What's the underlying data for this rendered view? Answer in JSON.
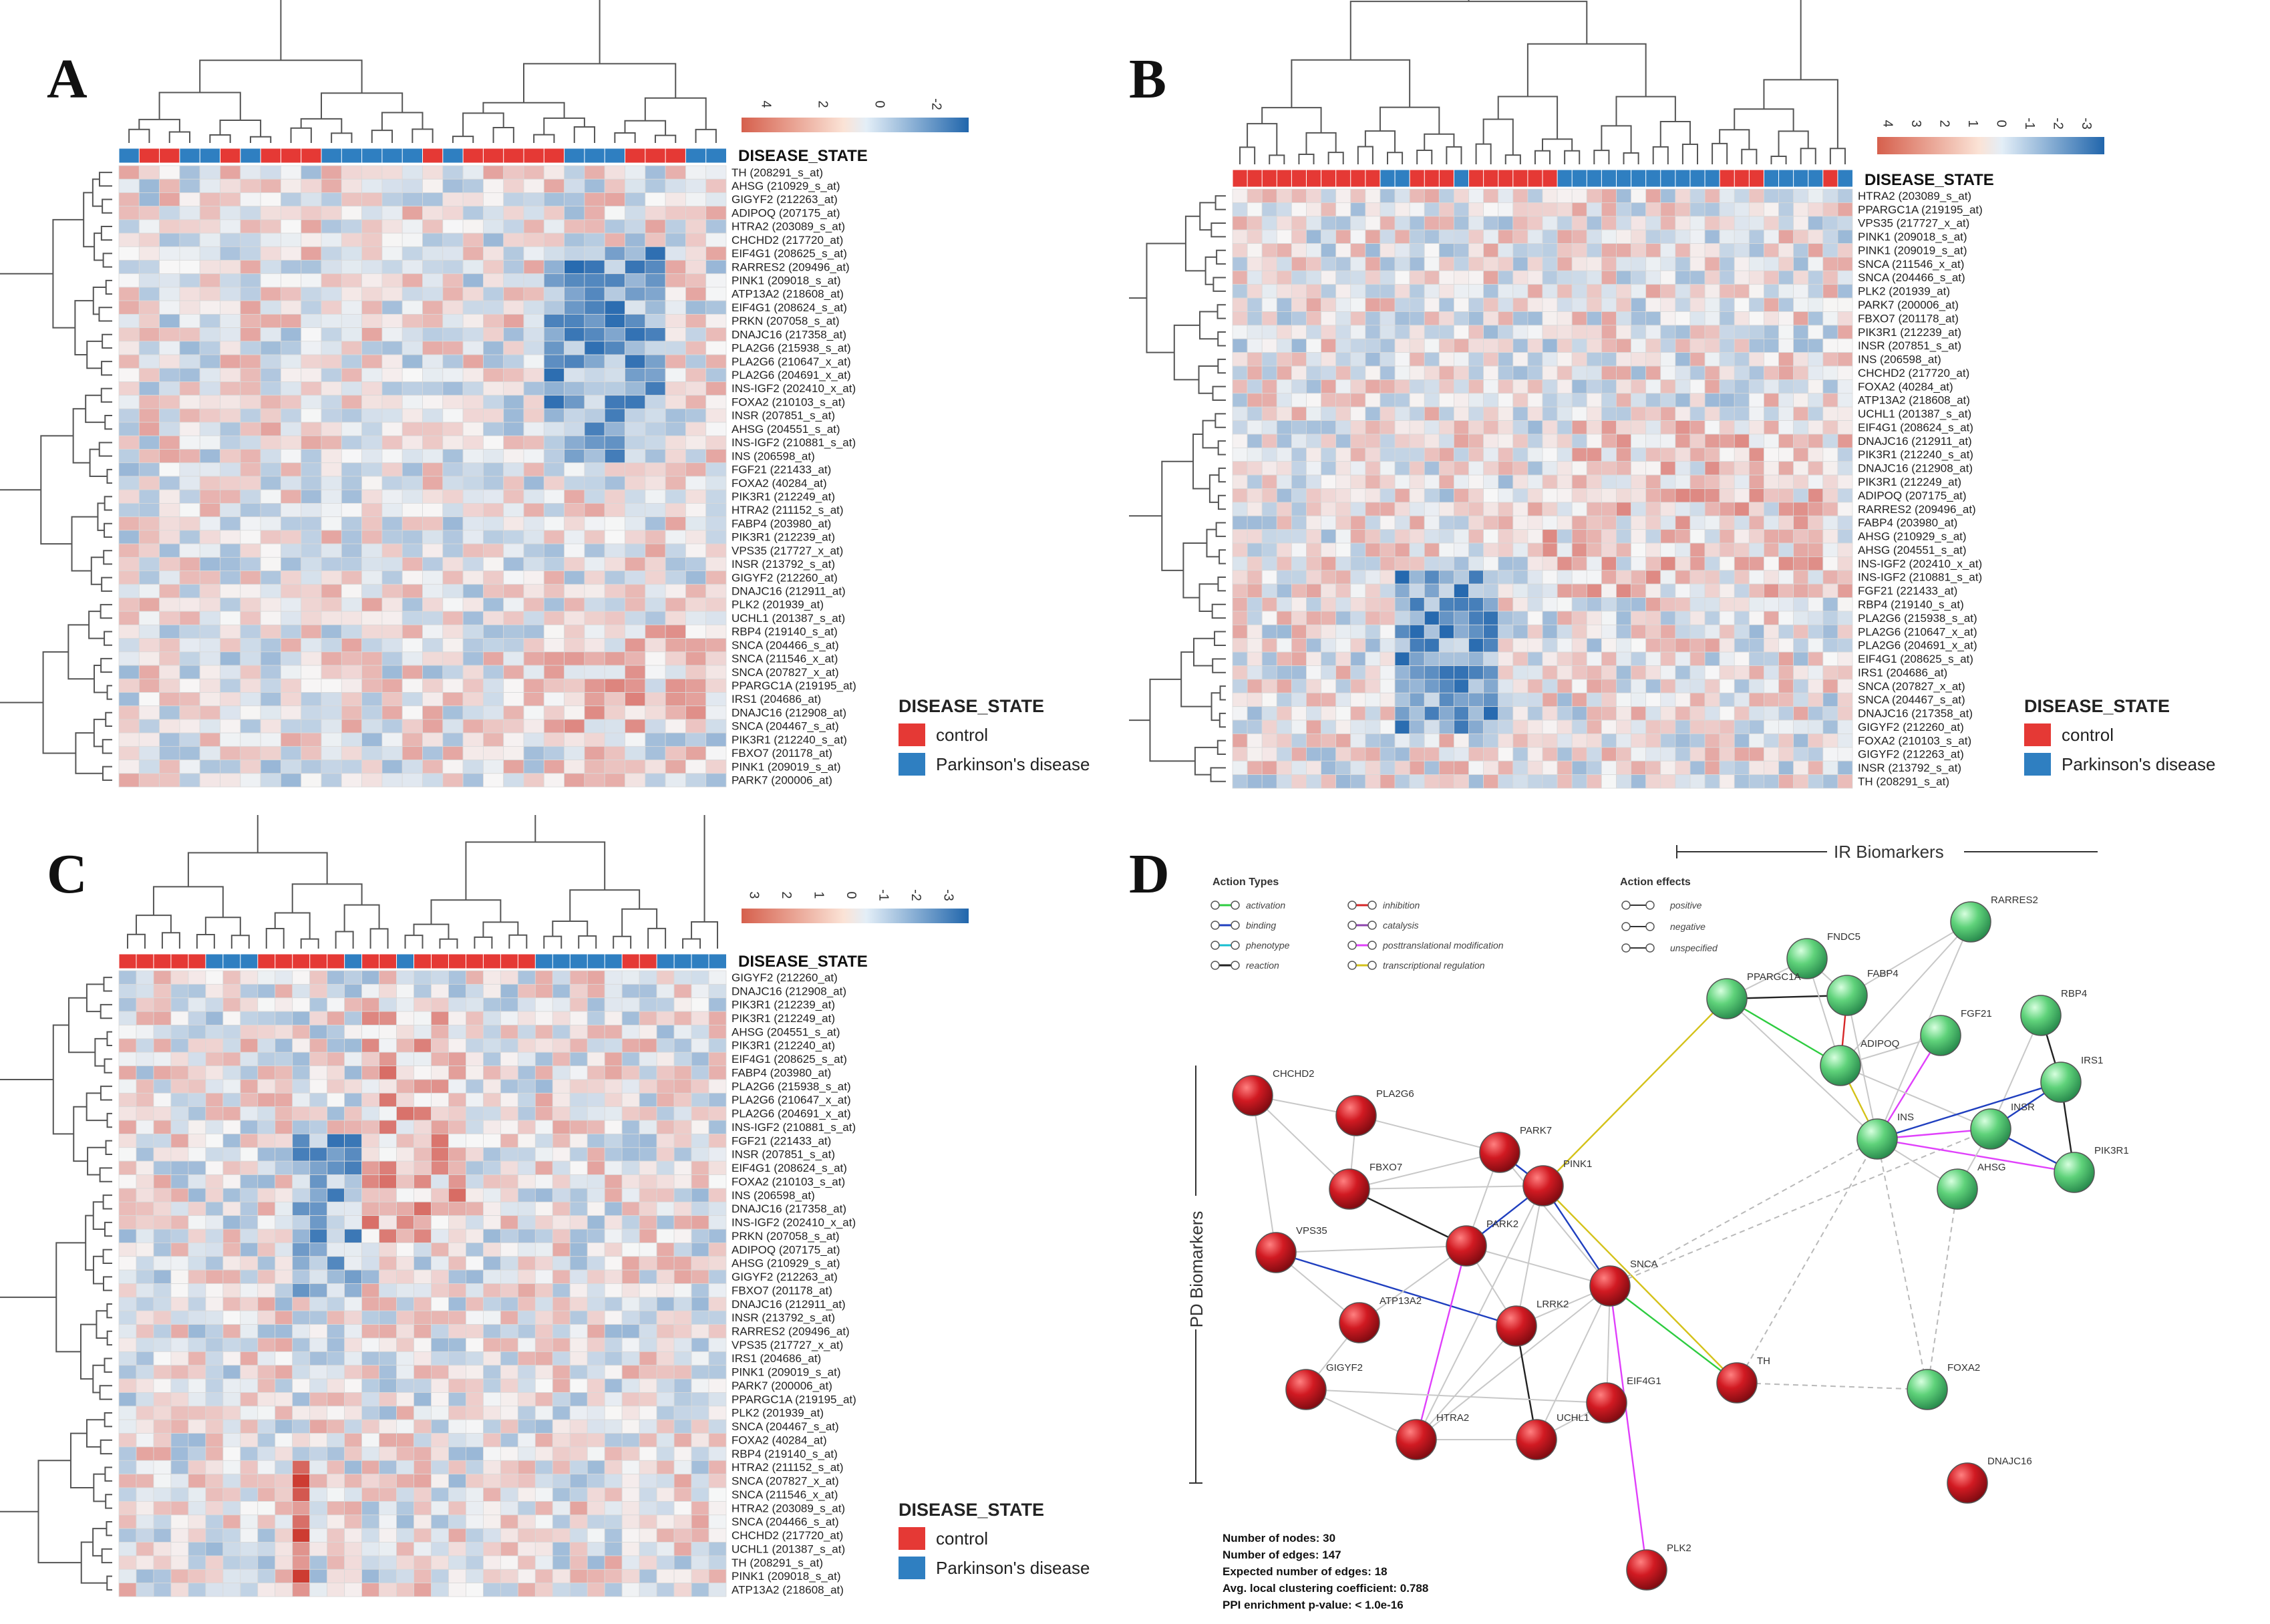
{
  "colors": {
    "control": "#e53935",
    "parkinsons": "#2f7fc1",
    "pd_node": "#c1121f",
    "ir_node": "#3fbf5f",
    "ink": "#222222"
  },
  "legend": {
    "title": "DISEASE_STATE",
    "control": "control",
    "parkinsons": "Parkinson's disease"
  },
  "heatmaps": [
    {
      "letter": "A",
      "annotation_label": "DISEASE_STATE",
      "scale_ticks": [
        "4",
        "2",
        "0",
        "-2"
      ],
      "disease_state": [
        "P",
        "C",
        "C",
        "P",
        "P",
        "C",
        "P",
        "C",
        "C",
        "C",
        "P",
        "P",
        "P",
        "P",
        "P",
        "C",
        "P",
        "C",
        "C",
        "C",
        "C",
        "C",
        "P",
        "P",
        "P",
        "C",
        "C",
        "C",
        "P",
        "P"
      ],
      "genes": [
        "TH (208291_s_at)",
        "AHSG (210929_s_at)",
        "GIGYF2 (212263_at)",
        "ADIPOQ (207175_at)",
        "HTRA2 (203089_s_at)",
        "CHCHD2 (217720_at)",
        "EIF4G1 (208625_s_at)",
        "RARRES2 (209496_at)",
        "PINK1 (209018_s_at)",
        "ATP13A2 (218608_at)",
        "EIF4G1 (208624_s_at)",
        "PRKN (207058_s_at)",
        "DNAJC16 (217358_at)",
        "PLA2G6 (215938_s_at)",
        "PLA2G6 (210647_x_at)",
        "PLA2G6 (204691_x_at)",
        "INS-IGF2 (202410_x_at)",
        "FOXA2 (210103_s_at)",
        "INSR (207851_s_at)",
        "AHSG (204551_s_at)",
        "INS-IGF2 (210881_s_at)",
        "INS (206598_at)",
        "FGF21 (221433_at)",
        "FOXA2 (40284_at)",
        "PIK3R1 (212249_at)",
        "HTRA2 (211152_s_at)",
        "FABP4 (203980_at)",
        "PIK3R1 (212239_at)",
        "VPS35 (217727_x_at)",
        "INSR (213792_s_at)",
        "GIGYF2 (212260_at)",
        "DNAJC16 (212911_at)",
        "PLK2 (201939_at)",
        "UCHL1 (201387_s_at)",
        "RBP4 (219140_s_at)",
        "SNCA (204466_s_at)",
        "SNCA (211546_x_at)",
        "SNCA (207827_x_at)",
        "PPARGC1A (219195_at)",
        "IRS1 (204686_at)",
        "DNAJC16 (212908_at)",
        "SNCA (204467_s_at)",
        "PIK3R1 (212240_s_at)",
        "FBXO7 (201178_at)",
        "PINK1 (209019_s_at)",
        "PARK7 (200006_at)"
      ]
    },
    {
      "letter": "B",
      "annotation_label": "DISEASE_STATE",
      "scale_ticks": [
        "4",
        "3",
        "2",
        "1",
        "0",
        "-1",
        "-2",
        "-3"
      ],
      "disease_state": [
        "C",
        "C",
        "C",
        "C",
        "C",
        "C",
        "C",
        "C",
        "C",
        "C",
        "P",
        "P",
        "C",
        "C",
        "C",
        "P",
        "C",
        "C",
        "C",
        "C",
        "C",
        "C",
        "P",
        "P",
        "P",
        "P",
        "P",
        "P",
        "P",
        "P",
        "P",
        "P",
        "P",
        "C",
        "C",
        "C",
        "P",
        "P",
        "P",
        "P",
        "C",
        "P"
      ],
      "genes": [
        "HTRA2 (203089_s_at)",
        "PPARGC1A (219195_at)",
        "VPS35 (217727_x_at)",
        "PINK1 (209018_s_at)",
        "PINK1 (209019_s_at)",
        "SNCA (211546_x_at)",
        "SNCA (204466_s_at)",
        "PLK2 (201939_at)",
        "PARK7 (200006_at)",
        "FBXO7 (201178_at)",
        "PIK3R1 (212239_at)",
        "INSR (207851_s_at)",
        "INS (206598_at)",
        "CHCHD2 (217720_at)",
        "FOXA2 (40284_at)",
        "ATP13A2 (218608_at)",
        "UCHL1 (201387_s_at)",
        "EIF4G1 (208624_s_at)",
        "DNAJC16 (212911_at)",
        "PIK3R1 (212240_s_at)",
        "DNAJC16 (212908_at)",
        "PIK3R1 (212249_at)",
        "ADIPOQ (207175_at)",
        "RARRES2 (209496_at)",
        "FABP4 (203980_at)",
        "AHSG (210929_s_at)",
        "AHSG (204551_s_at)",
        "INS-IGF2 (202410_x_at)",
        "INS-IGF2 (210881_s_at)",
        "FGF21 (221433_at)",
        "RBP4 (219140_s_at)",
        "PLA2G6 (215938_s_at)",
        "PLA2G6 (210647_x_at)",
        "PLA2G6 (204691_x_at)",
        "EIF4G1 (208625_s_at)",
        "IRS1 (204686_at)",
        "SNCA (207827_x_at)",
        "SNCA (204467_s_at)",
        "DNAJC16 (217358_at)",
        "GIGYF2 (212260_at)",
        "FOXA2 (210103_s_at)",
        "GIGYF2 (212263_at)",
        "INSR (213792_s_at)",
        "TH (208291_s_at)"
      ]
    },
    {
      "letter": "C",
      "annotation_label": "DISEASE_STATE",
      "scale_ticks": [
        "3",
        "2",
        "1",
        "0",
        "-1",
        "-2",
        "-3"
      ],
      "disease_state": [
        "C",
        "C",
        "C",
        "C",
        "C",
        "P",
        "P",
        "P",
        "C",
        "C",
        "C",
        "C",
        "C",
        "P",
        "C",
        "C",
        "P",
        "C",
        "C",
        "C",
        "C",
        "C",
        "C",
        "C",
        "P",
        "P",
        "P",
        "P",
        "P",
        "C",
        "C",
        "P",
        "P",
        "P",
        "P"
      ],
      "genes": [
        "GIGYF2 (212260_at)",
        "DNAJC16 (212908_at)",
        "PIK3R1 (212239_at)",
        "PIK3R1 (212249_at)",
        "AHSG (204551_s_at)",
        "PIK3R1 (212240_at)",
        "EIF4G1 (208625_s_at)",
        "FABP4 (203980_at)",
        "PLA2G6 (215938_s_at)",
        "PLA2G6 (210647_x_at)",
        "PLA2G6 (204691_x_at)",
        "INS-IGF2 (210881_s_at)",
        "FGF21 (221433_at)",
        "INSR (207851_s_at)",
        "EIF4G1 (208624_s_at)",
        "FOXA2 (210103_s_at)",
        "INS (206598_at)",
        "DNAJC16 (217358_at)",
        "INS-IGF2 (202410_x_at)",
        "PRKN (207058_s_at)",
        "ADIPOQ (207175_at)",
        "AHSG (210929_s_at)",
        "GIGYF2 (212263_at)",
        "FBXO7 (201178_at)",
        "DNAJC16 (212911_at)",
        "INSR (213792_s_at)",
        "RARRES2 (209496_at)",
        "VPS35 (217727_x_at)",
        "IRS1 (204686_at)",
        "PINK1 (209019_s_at)",
        "PARK7 (200006_at)",
        "PPARGC1A (219195_at)",
        "PLK2 (201939_at)",
        "SNCA (204467_s_at)",
        "FOXA2 (40284_at)",
        "RBP4 (219140_s_at)",
        "HTRA2 (211152_s_at)",
        "SNCA (207827_x_at)",
        "SNCA (211546_x_at)",
        "HTRA2 (203089_s_at)",
        "SNCA (204466_s_at)",
        "CHCHD2 (217720_at)",
        "UCHL1 (201387_s_at)",
        "TH (208291_s_at)",
        "PINK1 (209018_s_at)",
        "ATP13A2 (218608_at)"
      ]
    }
  ],
  "network": {
    "letter": "D",
    "ir_label": "IR Biomarkers",
    "pd_label": "PD Biomarkers",
    "action_types_title": "Action Types",
    "action_types": [
      {
        "label": "activation",
        "color": "#2ecc40"
      },
      {
        "label": "inhibition",
        "color": "#d62728"
      },
      {
        "label": "binding",
        "color": "#1f3fbf"
      },
      {
        "label": "catalysis",
        "color": "#8e44ad"
      },
      {
        "label": "phenotype",
        "color": "#17becf"
      },
      {
        "label": "posttranslational modification",
        "color": "#e040fb"
      },
      {
        "label": "reaction",
        "color": "#222222"
      },
      {
        "label": "transcriptional regulation",
        "color": "#d4c21a"
      }
    ],
    "action_effects_title": "Action effects",
    "action_effects": [
      "positive",
      "negative",
      "unspecified"
    ],
    "stats": [
      "Number of nodes: 30",
      "Number of edges: 147",
      "Expected number of edges: 18",
      "Avg. local clustering coefficient: 0.788",
      "PPI enrichment p-value: < 1.0e-16"
    ],
    "nodes": [
      {
        "id": "CHCHD2",
        "label": "CHCHD2",
        "group": "pd"
      },
      {
        "id": "PLA2G6",
        "label": "PLA2G6",
        "group": "pd"
      },
      {
        "id": "PARK7",
        "label": "PARK7",
        "group": "pd"
      },
      {
        "id": "FBXO7",
        "label": "FBXO7",
        "group": "pd"
      },
      {
        "id": "PINK1",
        "label": "PINK1",
        "group": "pd"
      },
      {
        "id": "VPS35",
        "label": "VPS35",
        "group": "pd"
      },
      {
        "id": "PARK2",
        "label": "PARK2",
        "group": "pd"
      },
      {
        "id": "SNCA",
        "label": "SNCA",
        "group": "pd"
      },
      {
        "id": "ATP13A2",
        "label": "ATP13A2",
        "group": "pd"
      },
      {
        "id": "LRRK2",
        "label": "LRRK2",
        "group": "pd"
      },
      {
        "id": "GIGYF2",
        "label": "GIGYF2",
        "group": "pd"
      },
      {
        "id": "EIF4G1",
        "label": "EIF4G1",
        "group": "pd"
      },
      {
        "id": "TH",
        "label": "TH",
        "group": "pd"
      },
      {
        "id": "HTRA2",
        "label": "HTRA2",
        "group": "pd"
      },
      {
        "id": "UCHL1",
        "label": "UCHL1",
        "group": "pd"
      },
      {
        "id": "PLK2",
        "label": "PLK2",
        "group": "pd"
      },
      {
        "id": "DNAJC16",
        "label": "DNAJC16",
        "group": "pd"
      },
      {
        "id": "RARRES2",
        "label": "RARRES2",
        "group": "ir"
      },
      {
        "id": "FNDC5",
        "label": "FNDC5",
        "group": "ir"
      },
      {
        "id": "PPARGC1A",
        "label": "PPARGC1A",
        "group": "ir"
      },
      {
        "id": "FABP4",
        "label": "FABP4",
        "group": "ir"
      },
      {
        "id": "RBP4",
        "label": "RBP4",
        "group": "ir"
      },
      {
        "id": "FGF21",
        "label": "FGF21",
        "group": "ir"
      },
      {
        "id": "ADIPOQ",
        "label": "ADIPOQ",
        "group": "ir"
      },
      {
        "id": "IRS1",
        "label": "IRS1",
        "group": "ir"
      },
      {
        "id": "INS",
        "label": "INS",
        "group": "ir"
      },
      {
        "id": "INSR",
        "label": "INSR",
        "group": "ir"
      },
      {
        "id": "AHSG",
        "label": "AHSG",
        "group": "ir"
      },
      {
        "id": "PIK3R1",
        "label": "PIK3R1",
        "group": "ir"
      },
      {
        "id": "FOXA2",
        "label": "FOXA2",
        "group": "ir"
      }
    ]
  }
}
